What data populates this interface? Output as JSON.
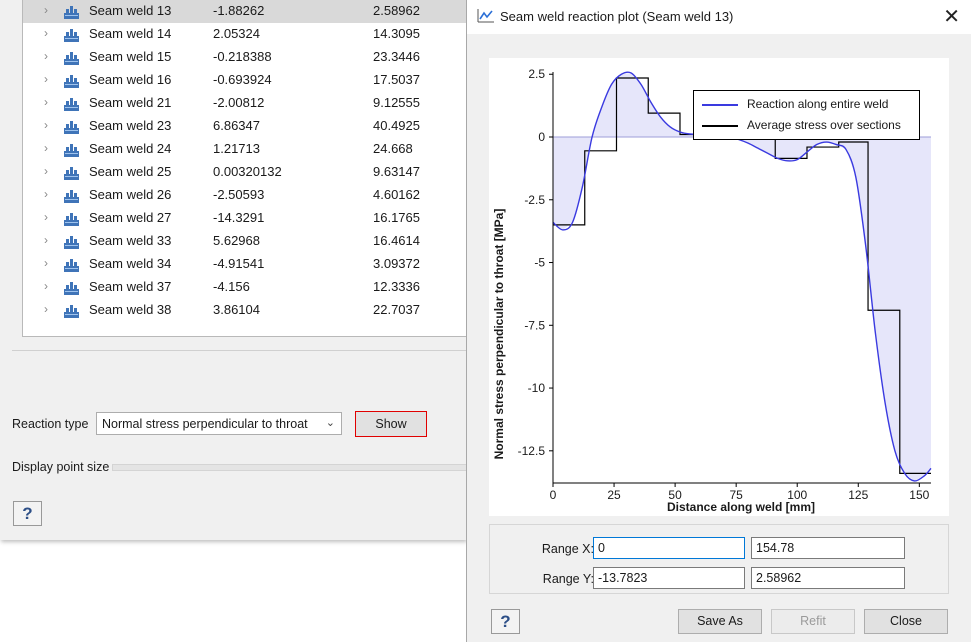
{
  "welds": [
    {
      "name": "Seam weld 13",
      "v1": "-1.88262",
      "v2": "2.58962",
      "selected": true
    },
    {
      "name": "Seam weld 14",
      "v1": "2.05324",
      "v2": "14.3095"
    },
    {
      "name": "Seam weld 15",
      "v1": "-0.218388",
      "v2": "23.3446"
    },
    {
      "name": "Seam weld 16",
      "v1": "-0.693924",
      "v2": "17.5037"
    },
    {
      "name": "Seam weld 21",
      "v1": "-2.00812",
      "v2": "9.12555"
    },
    {
      "name": "Seam weld 23",
      "v1": "6.86347",
      "v2": "40.4925"
    },
    {
      "name": "Seam weld 24",
      "v1": "1.21713",
      "v2": "24.668"
    },
    {
      "name": "Seam weld 25",
      "v1": "0.00320132",
      "v2": "9.63147"
    },
    {
      "name": "Seam weld 26",
      "v1": "-2.50593",
      "v2": "4.60162"
    },
    {
      "name": "Seam weld 27",
      "v1": "-14.3291",
      "v2": "16.1765"
    },
    {
      "name": "Seam weld 33",
      "v1": "5.62968",
      "v2": "16.4614"
    },
    {
      "name": "Seam weld 34",
      "v1": "-4.91541",
      "v2": "3.09372"
    },
    {
      "name": "Seam weld 37",
      "v1": "-4.156",
      "v2": "12.3336"
    },
    {
      "name": "Seam weld 38",
      "v1": "3.86104",
      "v2": "22.7037"
    }
  ],
  "controls": {
    "reaction_type_label": "Reaction type",
    "reaction_type_value": "Normal stress perpendicular to throat",
    "show_label": "Show",
    "point_size_label": "Display point size",
    "help_label": "?"
  },
  "dialog": {
    "title": "Seam weld reaction plot (Seam weld 13)",
    "range_x_label": "Range X:",
    "range_x_min": "0",
    "range_x_max": "154.78",
    "range_y_label": "Range Y:",
    "range_y_min": "-13.7823",
    "range_y_max": "2.58962",
    "help_label": "?",
    "save_as_label": "Save As",
    "refit_label": "Refit",
    "close_label": "Close"
  },
  "colors": {
    "accent": "#0078d7",
    "highlight_border": "#e00000",
    "reaction_line": "#3a3ae0",
    "reaction_fill": "#e6e6fa",
    "average_line": "#000000"
  },
  "chart_data": {
    "type": "line",
    "xlabel": "Distance along weld [mm]",
    "ylabel": "Normal stress perpendicular to throat [MPa]",
    "xlim": [
      0,
      154.78
    ],
    "ylim": [
      -13.7823,
      2.58962
    ],
    "xticks": [
      "0",
      "25",
      "50",
      "75",
      "100",
      "125",
      "150"
    ],
    "xtick_values": [
      0,
      25,
      50,
      75,
      100,
      125,
      150
    ],
    "yticks": [
      "2.5",
      "0",
      "-2.5",
      "-5",
      "-7.5",
      "-10",
      "-12.5"
    ],
    "ytick_values": [
      2.5,
      0,
      -2.5,
      -5,
      -7.5,
      -10,
      -12.5
    ],
    "legend_position": "top-right",
    "series": [
      {
        "name": "Reaction along entire weld",
        "kind": "curve",
        "x": [
          0,
          4,
          8,
          12,
          16,
          20,
          24,
          28,
          32,
          36,
          40,
          44,
          48,
          52,
          56,
          60,
          64,
          68,
          72,
          76,
          80,
          84,
          88,
          92,
          96,
          100,
          104,
          108,
          112,
          116,
          120,
          124,
          128,
          132,
          136,
          140,
          144,
          148,
          152,
          154.78
        ],
        "y": [
          -3.4,
          -3.7,
          -3.4,
          -2.0,
          0.0,
          1.2,
          2.1,
          2.5,
          2.55,
          2.1,
          1.4,
          0.8,
          0.4,
          0.2,
          0.12,
          0.1,
          0.1,
          0.05,
          0.0,
          -0.1,
          -0.25,
          -0.45,
          -0.65,
          -0.85,
          -0.95,
          -0.9,
          -0.6,
          -0.3,
          -0.2,
          -0.3,
          -0.5,
          -1.6,
          -4.3,
          -7.8,
          -10.6,
          -12.5,
          -13.4,
          -13.7,
          -13.5,
          -13.2
        ]
      },
      {
        "name": "Average stress over sections",
        "kind": "step",
        "x": [
          0,
          13,
          13,
          26,
          26,
          39,
          39,
          52,
          52,
          65,
          65,
          78,
          78,
          91,
          91,
          104,
          104,
          117,
          117,
          129,
          129,
          142,
          142,
          154.78
        ],
        "y": [
          -3.5,
          -3.5,
          -0.55,
          -0.55,
          2.35,
          2.35,
          0.95,
          0.95,
          0.1,
          0.1,
          0.0,
          0.0,
          -0.05,
          -0.05,
          -0.85,
          -0.85,
          -0.4,
          -0.4,
          -0.2,
          -0.2,
          -6.9,
          -6.9,
          -13.4,
          -13.4
        ]
      }
    ]
  }
}
